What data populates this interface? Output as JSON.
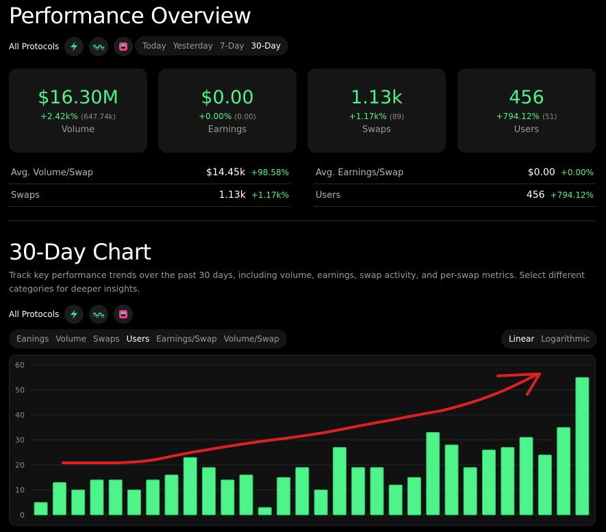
{
  "header": {
    "title": "Performance Overview"
  },
  "protocols": {
    "label": "All Protocols",
    "items": [
      {
        "name": "protocol-1",
        "color": "#3ad0c0",
        "icon": "lightning-icon"
      },
      {
        "name": "protocol-2",
        "color": "#3ad0c0",
        "icon": "wave-icon"
      },
      {
        "name": "protocol-3",
        "color": "#ff3d8b",
        "icon": "square-logo-icon"
      }
    ]
  },
  "time_filters": [
    {
      "label": "Today",
      "active": false
    },
    {
      "label": "Yesterday",
      "active": false
    },
    {
      "label": "7-Day",
      "active": false
    },
    {
      "label": "30-Day",
      "active": true
    }
  ],
  "stats": [
    {
      "value": "$16.30M",
      "delta": "+2.42k%",
      "sub": "(647.74k)",
      "label": "Volume"
    },
    {
      "value": "$0.00",
      "delta": "+0.00%",
      "sub": "(0.00)",
      "label": "Earnings"
    },
    {
      "value": "1.13k",
      "delta": "+1.17k%",
      "sub": "(89)",
      "label": "Swaps"
    },
    {
      "value": "456",
      "delta": "+794.12%",
      "sub": "(51)",
      "label": "Users"
    }
  ],
  "metrics": [
    {
      "label": "Avg. Volume/Swap",
      "value": "$14.45k",
      "delta": "+98.58%"
    },
    {
      "label": "Avg. Earnings/Swap",
      "value": "$0.00",
      "delta": "+0.00%"
    },
    {
      "label": "Swaps",
      "value": "1.13k",
      "delta": "+1.17k%"
    },
    {
      "label": "Users",
      "value": "456",
      "delta": "+794.12%"
    }
  ],
  "chart_section": {
    "title": "30-Day Chart",
    "description": "Track key performance trends over the past 30 days, including volume, earnings, swap activity, and per-swap metrics. Select different categories for deeper insights."
  },
  "category_tabs": [
    {
      "label": "Eanings",
      "active": false
    },
    {
      "label": "Volume",
      "active": false
    },
    {
      "label": "Swaps",
      "active": false
    },
    {
      "label": "Users",
      "active": true
    },
    {
      "label": "Earnings/Swap",
      "active": false
    },
    {
      "label": "Volume/Swap",
      "active": false
    }
  ],
  "scale_tabs": [
    {
      "label": "Linear",
      "active": true
    },
    {
      "label": "Logarithmic",
      "active": false
    }
  ],
  "colors": {
    "accent": "#4ef38a",
    "bar": "#4ef38a",
    "annotation": "#e02020"
  },
  "chart_data": {
    "type": "bar",
    "title": "",
    "xlabel": "",
    "ylabel": "",
    "ylim": [
      0,
      60
    ],
    "yticks": [
      0,
      10,
      20,
      30,
      40,
      50,
      60
    ],
    "grid": true,
    "values": [
      5,
      13,
      10,
      14,
      14,
      10,
      14,
      16,
      23,
      19,
      14,
      16,
      3,
      15,
      19,
      10,
      27,
      19,
      19,
      12,
      15,
      33,
      28,
      19,
      26,
      27,
      31,
      24,
      35,
      55
    ],
    "annotation": {
      "type": "hand-drawn-arrow",
      "color": "#e02020",
      "meaning": "upward trend"
    }
  }
}
